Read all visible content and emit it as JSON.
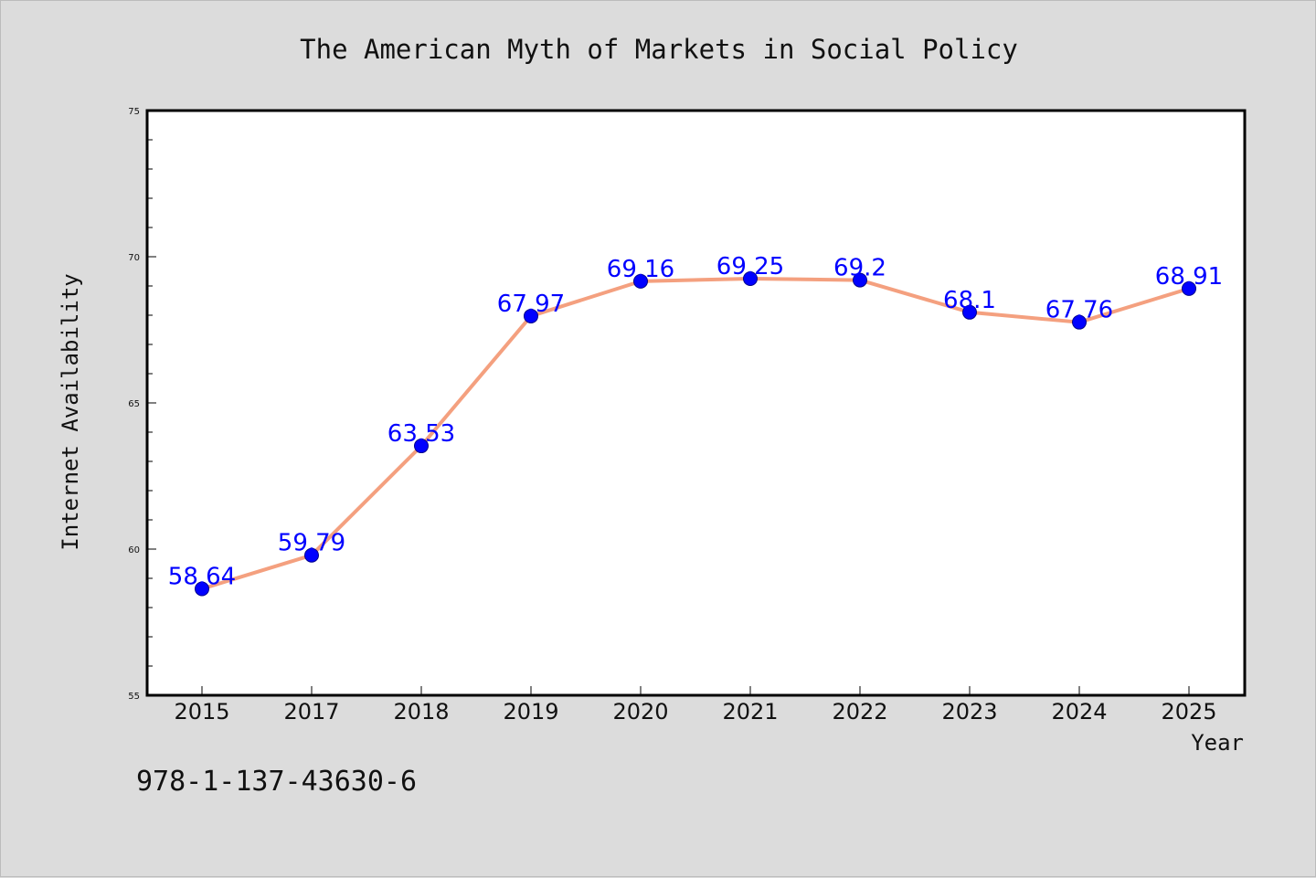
{
  "footer_text": "978-1-137-43630-6",
  "chart_data": {
    "type": "line",
    "title": "The American Myth of Markets in Social Policy",
    "xlabel": "Year",
    "ylabel": "Internet Availability",
    "categories": [
      "2015",
      "2017",
      "2018",
      "2019",
      "2020",
      "2021",
      "2022",
      "2023",
      "2024",
      "2025"
    ],
    "series": [
      {
        "values": [
          58.64,
          59.79,
          63.53,
          67.97,
          69.16,
          69.25,
          69.2,
          68.1,
          67.76,
          68.91
        ],
        "labels": [
          "58.64",
          "59.79",
          "63.53",
          "67.97",
          "69.16",
          "69.25",
          "69.2",
          "68.1",
          "67.76",
          "68.91"
        ],
        "line_color": "#f4a07f",
        "marker_color": "#0000ff",
        "label_color": "#0000ff"
      }
    ],
    "ylim": [
      55,
      75
    ],
    "yticks": [
      "55",
      "60",
      "65",
      "70",
      "75"
    ],
    "grid": false,
    "legend": false
  }
}
